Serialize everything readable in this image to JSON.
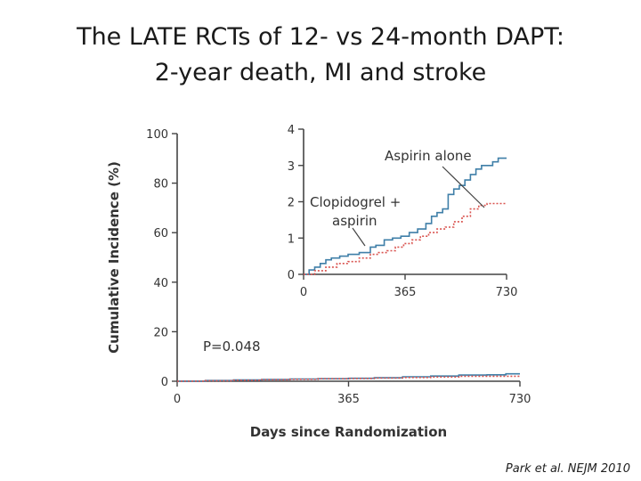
{
  "slide": {
    "title_line1": "The LATE RCTs of 12- vs 24-month DAPT:",
    "title_line2": "2-year death, MI and stroke",
    "citation": "Park et al. NEJM 2010"
  },
  "chart_data": [
    {
      "type": "line",
      "panel": "main",
      "xlabel": "Days since Randomization",
      "ylabel": "Cumulative Incidence (%)",
      "xlim": [
        0,
        730
      ],
      "ylim": [
        0,
        100
      ],
      "xticks": [
        0,
        365,
        730
      ],
      "yticks": [
        0,
        20,
        40,
        60,
        80,
        100
      ],
      "annotation": "P=0.048",
      "series": [
        {
          "x": [
            0,
            60,
            120,
            180,
            240,
            300,
            365,
            420,
            480,
            540,
            600,
            660,
            700,
            730
          ],
          "y": [
            0,
            0.3,
            0.5,
            0.7,
            0.9,
            1.0,
            1.2,
            1.4,
            1.8,
            2.1,
            2.5,
            2.6,
            3.0,
            3.0
          ],
          "color": "#3f7fa8",
          "dash": "solid"
        },
        {
          "x": [
            0,
            60,
            120,
            180,
            240,
            300,
            365,
            420,
            480,
            540,
            600,
            660,
            700,
            730
          ],
          "y": [
            0,
            0.2,
            0.4,
            0.6,
            0.8,
            1.0,
            1.1,
            1.3,
            1.5,
            1.7,
            2.0,
            2.0,
            2.0,
            2.0
          ],
          "color": "#d9534f",
          "dash": "dotted"
        }
      ]
    },
    {
      "type": "line",
      "panel": "inset",
      "xlim": [
        0,
        730
      ],
      "ylim": [
        0,
        4
      ],
      "xticks": [
        0,
        365,
        730
      ],
      "yticks": [
        0,
        1,
        2,
        3,
        4
      ],
      "series": [
        {
          "name": "Aspirin alone",
          "color": "#3f7fa8",
          "dash": "solid",
          "x": [
            0,
            20,
            40,
            60,
            80,
            100,
            130,
            160,
            200,
            240,
            260,
            290,
            320,
            350,
            380,
            410,
            440,
            460,
            480,
            500,
            520,
            540,
            560,
            580,
            600,
            620,
            640,
            660,
            680,
            700,
            730
          ],
          "y": [
            0,
            0.12,
            0.2,
            0.3,
            0.4,
            0.45,
            0.5,
            0.55,
            0.6,
            0.75,
            0.8,
            0.95,
            1.0,
            1.05,
            1.15,
            1.25,
            1.4,
            1.6,
            1.7,
            1.8,
            2.2,
            2.35,
            2.45,
            2.6,
            2.75,
            2.9,
            3.0,
            3.0,
            3.1,
            3.2,
            3.2
          ]
        },
        {
          "name": "Clopidogrel + aspirin",
          "color": "#d9534f",
          "dash": "dotted",
          "x": [
            0,
            40,
            80,
            120,
            160,
            200,
            240,
            270,
            300,
            330,
            360,
            390,
            420,
            450,
            480,
            510,
            540,
            570,
            600,
            630,
            660,
            700,
            730
          ],
          "y": [
            0,
            0.1,
            0.2,
            0.3,
            0.35,
            0.45,
            0.55,
            0.6,
            0.65,
            0.75,
            0.85,
            0.95,
            1.05,
            1.15,
            1.25,
            1.3,
            1.45,
            1.6,
            1.8,
            1.9,
            1.95,
            1.95,
            1.95
          ]
        }
      ],
      "labels": {
        "aspirin_alone": "Aspirin alone",
        "clopidogrel_line1": "Clopidogrel +",
        "clopidogrel_line2": "aspirin"
      }
    }
  ]
}
